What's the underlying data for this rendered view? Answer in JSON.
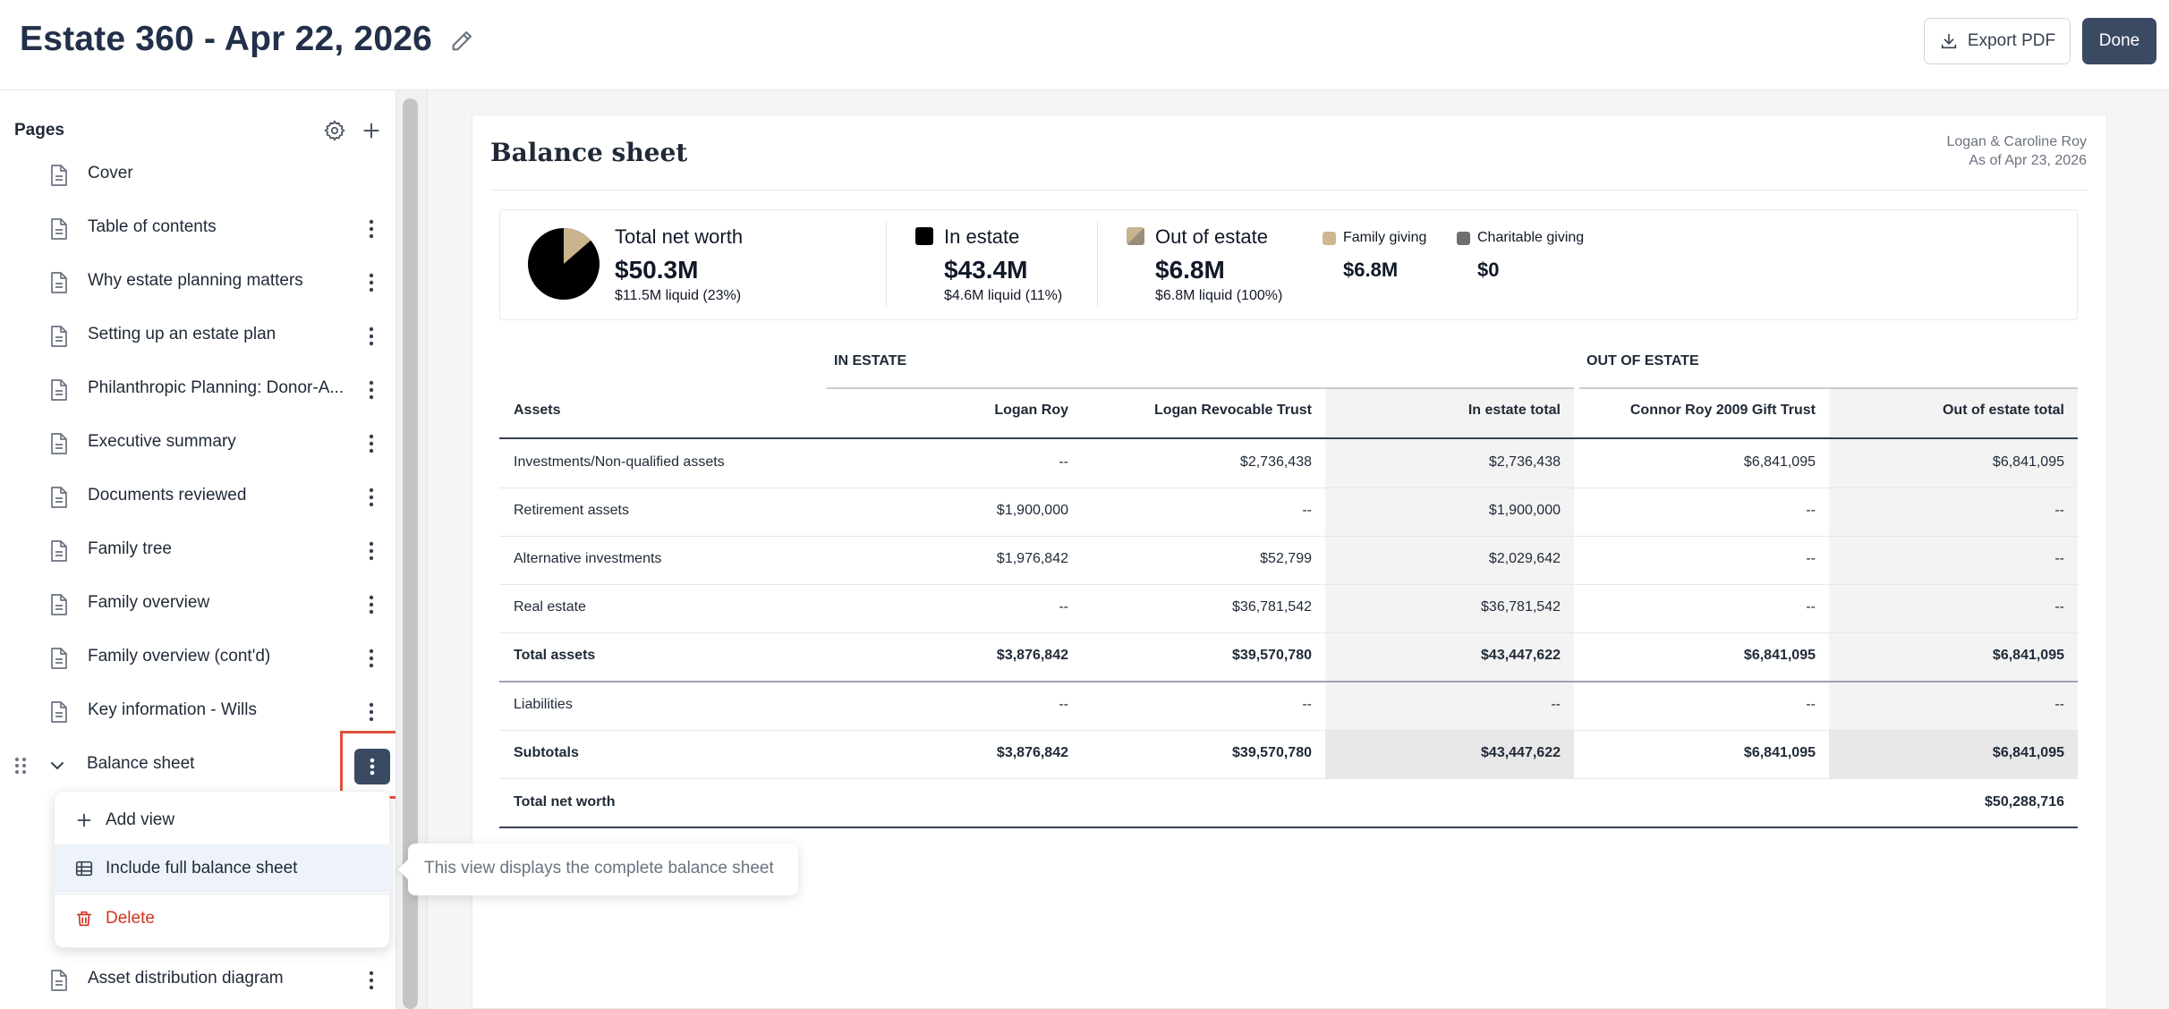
{
  "header": {
    "title": "Estate 360 - Apr 22, 2026",
    "export_label": "Export PDF",
    "done_label": "Done"
  },
  "sidebar": {
    "heading": "Pages",
    "items": [
      {
        "label": "Cover"
      },
      {
        "label": "Table of contents"
      },
      {
        "label": "Why estate planning matters"
      },
      {
        "label": "Setting up an estate plan"
      },
      {
        "label": "Philanthropic Planning: Donor-A..."
      },
      {
        "label": "Executive summary"
      },
      {
        "label": "Documents reviewed"
      },
      {
        "label": "Family tree"
      },
      {
        "label": "Family overview"
      },
      {
        "label": "Family overview (cont'd)"
      },
      {
        "label": "Key information - Wills"
      },
      {
        "label": "Balance sheet"
      },
      {
        "label": "Asset distribution diagram"
      }
    ]
  },
  "menu": {
    "add_view": "Add view",
    "include_full": "Include full balance sheet",
    "delete": "Delete"
  },
  "tooltip": "This view displays the complete balance sheet",
  "report": {
    "title": "Balance sheet",
    "client": "Logan & Caroline Roy",
    "as_of": "As of Apr 23, 2026",
    "summary": {
      "total_label": "Total net worth",
      "total_value": "$50.3M",
      "total_sub": "$11.5M liquid (23%)",
      "in_label": "In estate",
      "in_value": "$43.4M",
      "in_sub": "$4.6M liquid (11%)",
      "out_label": "Out of estate",
      "out_value": "$6.8M",
      "out_sub": "$6.8M liquid (100%)",
      "family_label": "Family giving",
      "family_value": "$6.8M",
      "charity_label": "Charitable giving",
      "charity_value": "$0",
      "pie_in_estate_fraction": 0.864
    },
    "colors": {
      "in_estate": "#000000",
      "out_estate": "#c9b48d",
      "family": "#cdb88f",
      "charity": "#6e6e6e",
      "accent": "#3b4a63"
    },
    "table": {
      "group_in": "IN ESTATE",
      "group_out": "OUT OF ESTATE",
      "headers": [
        "Assets",
        "Logan Roy",
        "Logan Revocable Trust",
        "In estate total",
        "Connor Roy 2009 Gift Trust",
        "Out of estate total"
      ],
      "rows": [
        [
          "Investments/Non-qualified assets",
          "--",
          "$2,736,438",
          "$2,736,438",
          "$6,841,095",
          "$6,841,095"
        ],
        [
          "Retirement assets",
          "$1,900,000",
          "--",
          "$1,900,000",
          "--",
          "--"
        ],
        [
          "Alternative investments",
          "$1,976,842",
          "$52,799",
          "$2,029,642",
          "--",
          "--"
        ],
        [
          "Real estate",
          "--",
          "$36,781,542",
          "$36,781,542",
          "--",
          "--"
        ],
        [
          "Total assets",
          "$3,876,842",
          "$39,570,780",
          "$43,447,622",
          "$6,841,095",
          "$6,841,095"
        ],
        [
          "Liabilities",
          "--",
          "--",
          "--",
          "--",
          "--"
        ],
        [
          "Subtotals",
          "$3,876,842",
          "$39,570,780",
          "$43,447,622",
          "$6,841,095",
          "$6,841,095"
        ]
      ],
      "net_worth_label": "Total net worth",
      "net_worth_value": "$50,288,716"
    }
  }
}
